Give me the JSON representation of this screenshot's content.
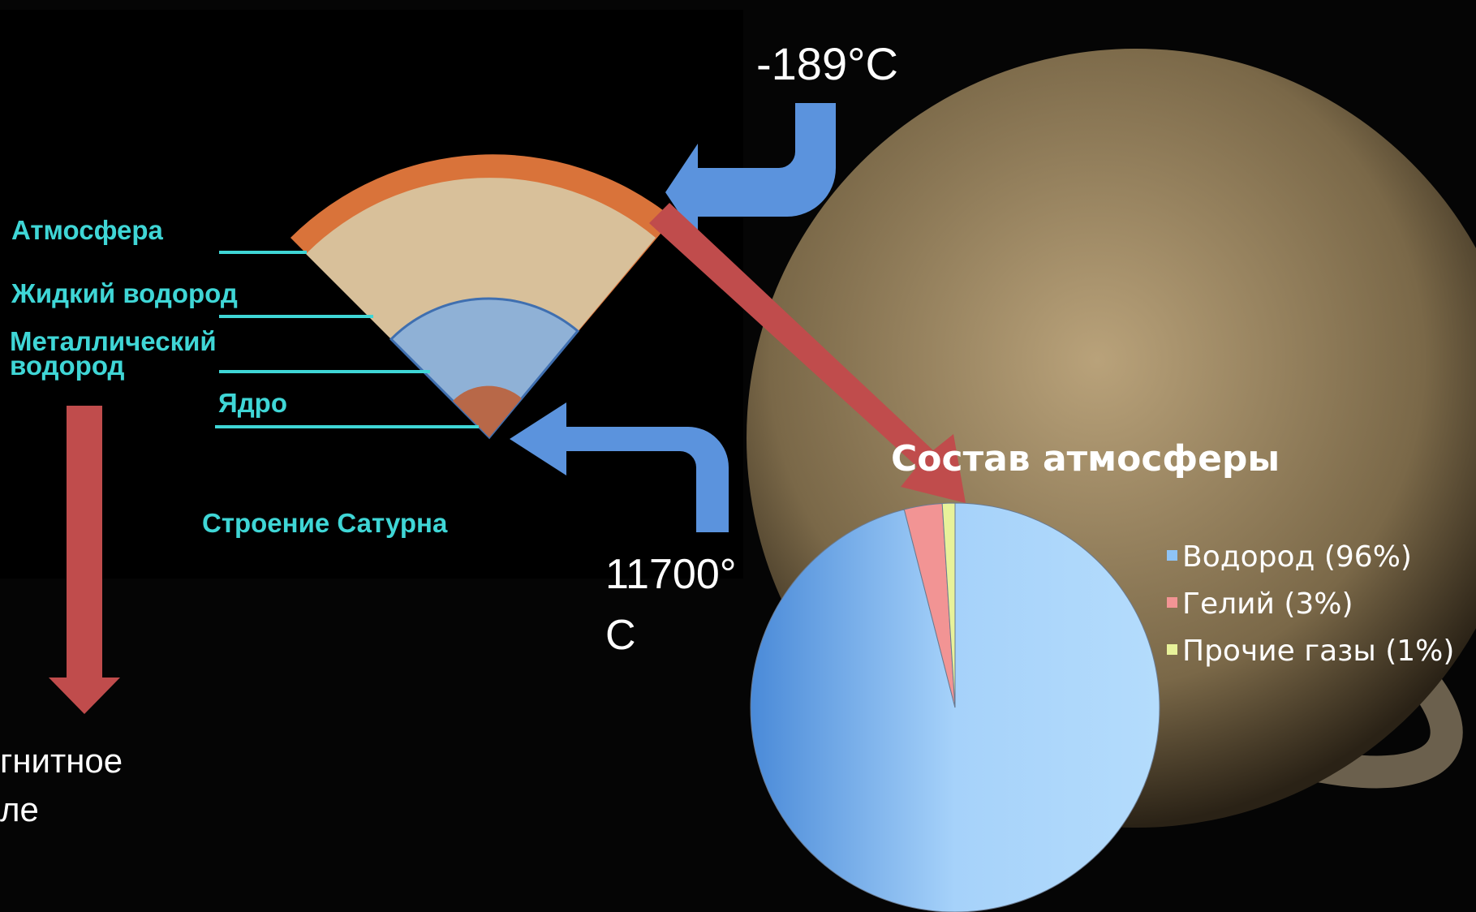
{
  "chart_data": {
    "type": "pie",
    "title": "Состав атмосферы",
    "categories": [
      "Водород (96%)",
      "Гелий (3%)",
      "Прочие газы (1%)"
    ],
    "values": [
      96,
      3,
      1
    ],
    "colors": [
      "#8ec3f5",
      "#f29494",
      "#e8f29a"
    ],
    "legend": "right"
  },
  "diagram": {
    "title": "Строение Сатурна",
    "layers": [
      "Атмосфера",
      "Жидкий водород",
      "Металлический",
      "водород",
      "Ядро"
    ]
  },
  "annotations": {
    "top_temp": "-189°C",
    "core_temp": [
      "11700°",
      "C"
    ],
    "magnetic": [
      "гнитное",
      "ле"
    ]
  }
}
